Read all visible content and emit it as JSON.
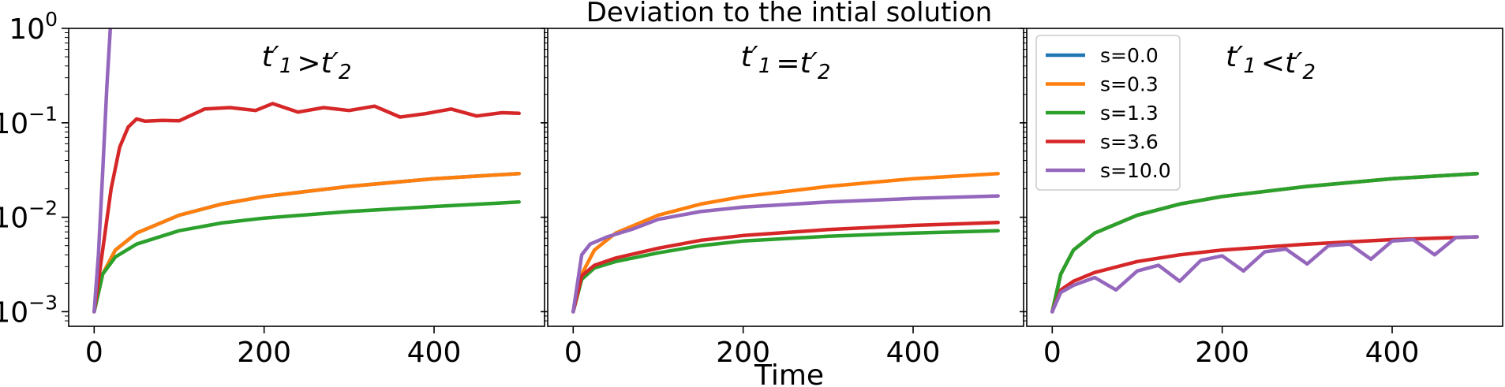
{
  "figure": {
    "suptitle": "Deviation to the intial solution",
    "xlabel": "Time"
  },
  "colors": {
    "s=0.0": "#1f77b4",
    "s=0.3": "#ff7f0e",
    "s=1.3": "#2ca02c",
    "s=3.6": "#d62728",
    "s=10.0": "#9467bd"
  },
  "chart_data": [
    {
      "type": "line",
      "title": "t′1 > t′2",
      "xlim": [
        -30,
        530
      ],
      "ylim": [
        0.0007,
        1
      ],
      "yscale": "log",
      "xticks": [
        0,
        200,
        400
      ],
      "yticks": [
        0.001,
        0.01,
        0.1,
        1
      ],
      "ytick_labels": [
        "10",
        "10",
        "10",
        "10"
      ],
      "ytick_exponents": [
        "−3",
        "−2",
        "−1",
        "0"
      ],
      "series": [
        {
          "name": "s=0.0",
          "x": [
            0,
            10,
            25,
            50,
            100,
            150,
            200,
            300,
            400,
            500
          ],
          "y": [
            0.001,
            0.0025,
            0.0045,
            0.0068,
            0.0105,
            0.0138,
            0.0166,
            0.0212,
            0.0256,
            0.029
          ]
        },
        {
          "name": "s=0.3",
          "x": [
            0,
            10,
            25,
            50,
            100,
            150,
            200,
            300,
            400,
            500
          ],
          "y": [
            0.001,
            0.0025,
            0.0045,
            0.0068,
            0.0105,
            0.0138,
            0.0166,
            0.0212,
            0.0256,
            0.029
          ]
        },
        {
          "name": "s=1.3",
          "x": [
            0,
            10,
            25,
            50,
            100,
            150,
            200,
            300,
            400,
            500
          ],
          "y": [
            0.001,
            0.0025,
            0.0038,
            0.0052,
            0.0072,
            0.0087,
            0.0098,
            0.0115,
            0.013,
            0.0145
          ]
        },
        {
          "name": "s=3.6",
          "x": [
            0,
            10,
            20,
            30,
            40,
            50,
            60,
            80,
            100,
            130,
            160,
            190,
            210,
            240,
            270,
            300,
            330,
            360,
            390,
            420,
            450,
            480,
            500
          ],
          "y": [
            0.001,
            0.0045,
            0.02,
            0.055,
            0.09,
            0.11,
            0.104,
            0.106,
            0.105,
            0.14,
            0.145,
            0.135,
            0.16,
            0.13,
            0.145,
            0.135,
            0.15,
            0.115,
            0.125,
            0.14,
            0.118,
            0.128,
            0.126
          ]
        },
        {
          "name": "s=10.0",
          "x": [
            0,
            5,
            10,
            15,
            19
          ],
          "y": [
            0.001,
            0.004,
            0.03,
            0.25,
            1
          ]
        }
      ]
    },
    {
      "type": "line",
      "title": "t′1 = t′2",
      "xlim": [
        -30,
        530
      ],
      "ylim": [
        0.0007,
        1
      ],
      "yscale": "log",
      "xticks": [
        0,
        200,
        400
      ],
      "series": [
        {
          "name": "s=0.3",
          "x": [
            0,
            10,
            25,
            50,
            100,
            150,
            200,
            300,
            400,
            500
          ],
          "y": [
            0.001,
            0.0025,
            0.0045,
            0.0068,
            0.0105,
            0.0138,
            0.0166,
            0.0212,
            0.0256,
            0.029
          ]
        },
        {
          "name": "s=1.3",
          "x": [
            0,
            10,
            25,
            50,
            100,
            150,
            200,
            300,
            400,
            500
          ],
          "y": [
            0.001,
            0.0022,
            0.0029,
            0.0034,
            0.0042,
            0.005,
            0.0056,
            0.0063,
            0.0068,
            0.0072
          ]
        },
        {
          "name": "s=3.6",
          "x": [
            0,
            10,
            25,
            50,
            100,
            150,
            200,
            300,
            400,
            500
          ],
          "y": [
            0.001,
            0.0024,
            0.0031,
            0.0037,
            0.0047,
            0.0057,
            0.0064,
            0.0074,
            0.0082,
            0.0088
          ]
        },
        {
          "name": "s=10.0",
          "x": [
            0,
            10,
            20,
            40,
            70,
            100,
            150,
            200,
            300,
            400,
            500
          ],
          "y": [
            0.001,
            0.004,
            0.0052,
            0.0062,
            0.0075,
            0.0095,
            0.0115,
            0.0128,
            0.0145,
            0.0158,
            0.0168
          ]
        }
      ]
    },
    {
      "type": "line",
      "title": "t′1 < t′2",
      "xlim": [
        -30,
        530
      ],
      "ylim": [
        0.0007,
        1
      ],
      "yscale": "log",
      "xticks": [
        0,
        200,
        400
      ],
      "legend_position": "top-left",
      "series": [
        {
          "name": "s=0.0",
          "x": [
            0,
            10,
            25,
            50,
            100,
            150,
            200,
            300,
            400,
            500
          ],
          "y": [
            0.001,
            0.0025,
            0.0045,
            0.0068,
            0.0105,
            0.0138,
            0.0166,
            0.0212,
            0.0256,
            0.029
          ]
        },
        {
          "name": "s=0.3",
          "x": [
            0,
            10,
            25,
            50,
            100,
            150,
            200,
            300,
            400,
            500
          ],
          "y": [
            0.001,
            0.0025,
            0.0045,
            0.0068,
            0.0105,
            0.0138,
            0.0166,
            0.0212,
            0.0256,
            0.029
          ]
        },
        {
          "name": "s=1.3",
          "x": [
            0,
            10,
            25,
            50,
            100,
            150,
            200,
            300,
            400,
            500
          ],
          "y": [
            0.001,
            0.0025,
            0.0045,
            0.0068,
            0.0105,
            0.0138,
            0.0166,
            0.0212,
            0.0256,
            0.029
          ]
        },
        {
          "name": "s=3.6",
          "x": [
            0,
            10,
            25,
            50,
            100,
            150,
            200,
            300,
            400,
            500
          ],
          "y": [
            0.001,
            0.0017,
            0.0021,
            0.0026,
            0.0034,
            0.004,
            0.0045,
            0.0052,
            0.0058,
            0.0062
          ]
        },
        {
          "name": "s=10.0",
          "x": [
            0,
            10,
            25,
            50,
            75,
            100,
            125,
            150,
            175,
            200,
            225,
            250,
            275,
            300,
            325,
            350,
            375,
            400,
            425,
            450,
            475,
            500
          ],
          "y": [
            0.001,
            0.0016,
            0.0019,
            0.0023,
            0.0017,
            0.0027,
            0.0031,
            0.0021,
            0.0035,
            0.0039,
            0.0027,
            0.0043,
            0.0046,
            0.0032,
            0.005,
            0.0052,
            0.0036,
            0.0056,
            0.0058,
            0.004,
            0.0061,
            0.0062
          ]
        }
      ]
    }
  ],
  "legend": {
    "entries": [
      "s=0.0",
      "s=0.3",
      "s=1.3",
      "s=3.6",
      "s=10.0"
    ]
  }
}
